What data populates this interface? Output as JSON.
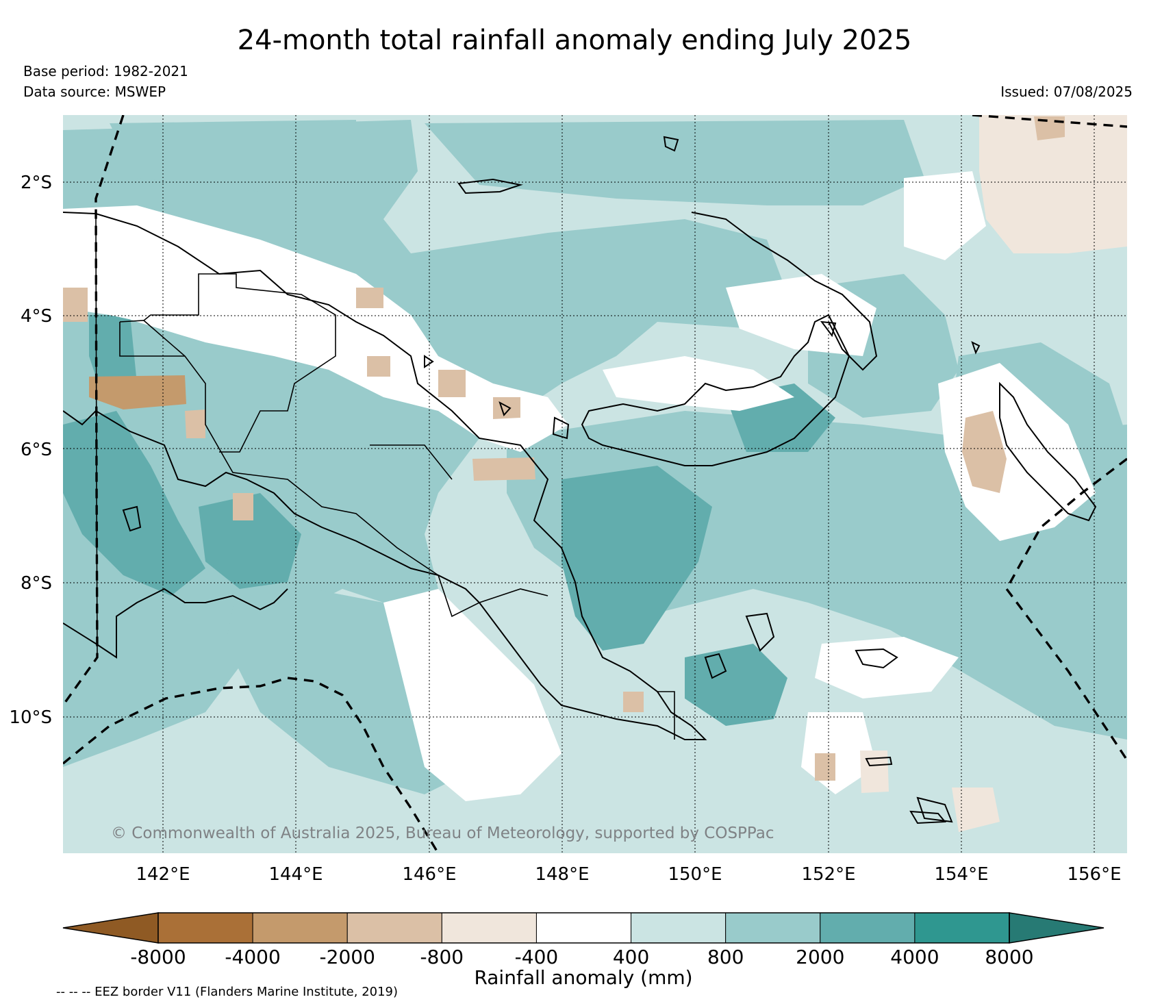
{
  "title": "24-month total rainfall anomaly ending July 2025",
  "base_period": "Base period: 1982-2021",
  "data_source": "Data source: MSWEP",
  "issued": "Issued: 07/08/2025",
  "copyright": "© Commonwealth of Australia 2025, Bureau of Meteorology, supported by COSPPac",
  "eez_note": "-- -- -- EEZ border V11 (Flanders Marine Institute, 2019)",
  "lat_ticks": [
    "2°S",
    "4°S",
    "6°S",
    "8°S",
    "10°S"
  ],
  "lon_ticks": [
    "142°E",
    "144°E",
    "146°E",
    "148°E",
    "150°E",
    "152°E",
    "154°E",
    "156°E"
  ],
  "colorbar": {
    "label": "Rainfall anomaly (mm)",
    "tick_labels": [
      "-8000",
      "-4000",
      "-2000",
      "-800",
      "-400",
      "400",
      "800",
      "2000",
      "4000",
      "8000"
    ],
    "colors": [
      "#aa7037",
      "#c49a6c",
      "#dbc0a6",
      "#f0e6dc",
      "#ffffff",
      "#cbe4e3",
      "#99cbcb",
      "#62adad",
      "#2f9790"
    ],
    "under_color": "#8f5a24",
    "over_color": "#277a74"
  },
  "chart_data": {
    "type": "heatmap",
    "title": "24-month total rainfall anomaly ending July 2025",
    "colorbar_label": "Rainfall anomaly (mm)",
    "levels": [
      -8000,
      -4000,
      -2000,
      -800,
      -400,
      400,
      800,
      2000,
      4000,
      8000
    ],
    "lon_ticks": [
      142,
      144,
      146,
      148,
      150,
      152,
      154,
      156
    ],
    "lat_ticks": [
      -2,
      -4,
      -6,
      -8,
      -10
    ],
    "grid": true
  }
}
